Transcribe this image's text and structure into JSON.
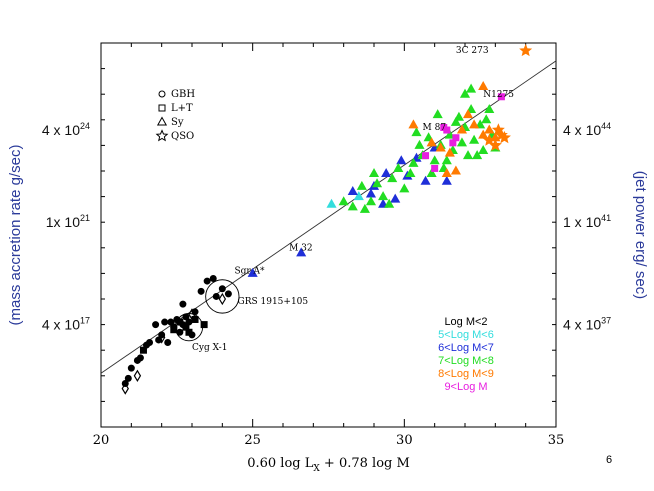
{
  "slide_number": "6",
  "colors": {
    "axis": "#000000",
    "blue_label": "#2a3a9a",
    "black_points": "#000000",
    "cyan": "#33dddd",
    "blue": "#1f2fd8",
    "green": "#22dd22",
    "orange": "#ff7a00",
    "magenta": "#e81fe0"
  },
  "chart_data": {
    "type": "scatter",
    "title": "",
    "xlabel_parts": {
      "prefix": "0.60  log  L",
      "sub": "X",
      "suffix": "  +  0.78  log  M"
    },
    "xlim": [
      20,
      35
    ],
    "x_ticks": [
      "20",
      "25",
      "30",
      "35"
    ],
    "ylim": [
      13,
      28
    ],
    "left_axis_label": "(mass accretion rate g/sec)",
    "right_axis_label": "(jet power erg/ sec)",
    "left_ticks": [
      {
        "value": 17,
        "mantissa": "4 x 10",
        "exp": "17"
      },
      {
        "value": 21,
        "mantissa": "1x 10",
        "exp": "21"
      },
      {
        "value": 24.6,
        "mantissa": "4 x 10",
        "exp": "24"
      }
    ],
    "right_ticks": [
      {
        "value": 17,
        "mantissa": "4 x 10",
        "exp": "37"
      },
      {
        "value": 21,
        "mantissa": "1 x 10",
        "exp": "41"
      },
      {
        "value": 24.6,
        "mantissa": "4 x 10",
        "exp": "44"
      }
    ],
    "fit_line": {
      "x": [
        20,
        35
      ],
      "y": [
        15.1,
        27.3
      ]
    },
    "symbol_legend": [
      {
        "symbol": "circle",
        "label": "GBH"
      },
      {
        "symbol": "square",
        "label": "L+T"
      },
      {
        "symbol": "triangle",
        "label": "Sy"
      },
      {
        "symbol": "star",
        "label": "QSO"
      }
    ],
    "mass_legend": [
      {
        "label": "Log M<2",
        "color_key": "axis"
      },
      {
        "label": "5<Log M<6",
        "color_key": "cyan"
      },
      {
        "label": "6<Log M<7",
        "color_key": "blue"
      },
      {
        "label": "7<Log M<8",
        "color_key": "green"
      },
      {
        "label": "8<Log M<9",
        "color_key": "orange"
      },
      {
        "label": "9<Log M",
        "color_key": "magenta"
      }
    ],
    "annotations": [
      {
        "text": "3C 273",
        "x": 31.7,
        "y": 27.6
      },
      {
        "text": "N1275",
        "x": 32.6,
        "y": 25.9
      },
      {
        "text": "M 87",
        "x": 30.6,
        "y": 24.6
      },
      {
        "text": "M 32",
        "x": 26.2,
        "y": 19.9
      },
      {
        "text": "Sgr A*",
        "x": 24.4,
        "y": 19.0
      },
      {
        "text": "GRS 1915+105",
        "x": 24.5,
        "y": 17.8
      },
      {
        "text": "Cyg X-1",
        "x": 23.0,
        "y": 16.0
      }
    ],
    "circled_points": [
      {
        "x": 24.0,
        "y": 18.1,
        "r": 0.55
      },
      {
        "x": 22.9,
        "y": 16.9,
        "r": 0.45
      }
    ],
    "series": [
      {
        "name": "GBH",
        "symbol": "circle",
        "color_key": "black_points",
        "points": [
          [
            20.8,
            14.7
          ],
          [
            20.9,
            14.9
          ],
          [
            21.2,
            15.6
          ],
          [
            21.3,
            15.7
          ],
          [
            21.0,
            15.3
          ],
          [
            21.5,
            16.2
          ],
          [
            21.6,
            16.3
          ],
          [
            21.9,
            16.4
          ],
          [
            22.0,
            16.6
          ],
          [
            21.8,
            17.0
          ],
          [
            22.1,
            17.1
          ],
          [
            22.3,
            17.1
          ],
          [
            22.5,
            17.2
          ],
          [
            22.7,
            17.0
          ],
          [
            22.8,
            17.3
          ],
          [
            22.4,
            16.9
          ],
          [
            22.6,
            16.7
          ],
          [
            22.9,
            17.1
          ],
          [
            23.1,
            17.5
          ],
          [
            23.3,
            18.3
          ],
          [
            23.5,
            18.7
          ],
          [
            23.7,
            18.8
          ],
          [
            23.8,
            18.1
          ],
          [
            24.0,
            18.4
          ],
          [
            22.7,
            17.8
          ],
          [
            23.0,
            16.6
          ],
          [
            22.2,
            16.3
          ],
          [
            24.2,
            18.2
          ]
        ]
      },
      {
        "name": "L+T",
        "symbol": "square",
        "color_key": "black_points",
        "points": [
          [
            22.6,
            17.1
          ],
          [
            22.8,
            16.9
          ],
          [
            23.1,
            17.2
          ],
          [
            22.4,
            16.8
          ],
          [
            21.4,
            16.0
          ],
          [
            22.9,
            16.7
          ],
          [
            23.4,
            17.0
          ]
        ]
      },
      {
        "name": "GBH limits",
        "symbol": "diamond",
        "color_key": "black_points",
        "points": [
          [
            20.8,
            14.5
          ],
          [
            21.2,
            15.0
          ],
          [
            23.0,
            17.4
          ],
          [
            24.0,
            18.0
          ],
          [
            22.0,
            16.5
          ]
        ]
      },
      {
        "name": "5<LogM<6",
        "symbol": "triangle",
        "color_key": "cyan",
        "points": [
          [
            27.6,
            21.7
          ],
          [
            28.5,
            22.0
          ]
        ]
      },
      {
        "name": "6<LogM<7",
        "symbol": "triangle",
        "color_key": "blue",
        "points": [
          [
            25.0,
            19.0
          ],
          [
            26.6,
            19.8
          ],
          [
            28.3,
            22.2
          ],
          [
            29.0,
            22.4
          ],
          [
            29.4,
            22.9
          ],
          [
            29.7,
            21.9
          ],
          [
            29.9,
            23.4
          ],
          [
            30.4,
            23.5
          ],
          [
            30.7,
            22.6
          ],
          [
            31.0,
            23.9
          ],
          [
            31.4,
            22.6
          ],
          [
            29.3,
            21.7
          ],
          [
            28.9,
            22.1
          ],
          [
            30.1,
            22.8
          ]
        ]
      },
      {
        "name": "7<LogM<8",
        "symbol": "triangle",
        "color_key": "green",
        "points": [
          [
            28.0,
            21.8
          ],
          [
            28.3,
            21.6
          ],
          [
            28.6,
            22.4
          ],
          [
            28.9,
            21.8
          ],
          [
            29.1,
            22.5
          ],
          [
            29.3,
            22.0
          ],
          [
            29.6,
            22.7
          ],
          [
            29.8,
            23.1
          ],
          [
            30.0,
            22.3
          ],
          [
            30.2,
            22.9
          ],
          [
            30.3,
            23.3
          ],
          [
            30.5,
            24.0
          ],
          [
            30.6,
            23.6
          ],
          [
            30.8,
            24.3
          ],
          [
            30.9,
            22.9
          ],
          [
            31.0,
            23.4
          ],
          [
            31.2,
            24.0
          ],
          [
            31.3,
            23.1
          ],
          [
            31.5,
            24.4
          ],
          [
            31.6,
            23.8
          ],
          [
            31.8,
            25.1
          ],
          [
            31.9,
            24.1
          ],
          [
            32.0,
            24.7
          ],
          [
            32.1,
            23.6
          ],
          [
            32.2,
            25.4
          ],
          [
            32.3,
            24.2
          ],
          [
            32.4,
            23.6
          ],
          [
            32.5,
            24.8
          ],
          [
            32.6,
            23.8
          ],
          [
            32.7,
            25.0
          ],
          [
            32.9,
            24.4
          ],
          [
            33.0,
            23.9
          ],
          [
            32.2,
            26.2
          ],
          [
            32.0,
            26.0
          ],
          [
            31.7,
            24.9
          ],
          [
            31.4,
            23.4
          ],
          [
            30.4,
            24.5
          ],
          [
            31.1,
            25.2
          ],
          [
            29.0,
            22.9
          ],
          [
            28.7,
            21.5
          ],
          [
            29.5,
            21.7
          ],
          [
            32.8,
            25.4
          ]
        ]
      },
      {
        "name": "8<LogM<9",
        "symbol": "triangle",
        "color_key": "orange",
        "points": [
          [
            30.9,
            24.1
          ],
          [
            31.2,
            23.9
          ],
          [
            31.5,
            23.7
          ],
          [
            31.7,
            23.0
          ],
          [
            31.9,
            24.6
          ],
          [
            32.3,
            24.8
          ],
          [
            32.6,
            24.4
          ],
          [
            32.8,
            24.6
          ],
          [
            33.0,
            24.3
          ],
          [
            32.6,
            26.3
          ],
          [
            32.1,
            25.2
          ],
          [
            31.4,
            22.9
          ],
          [
            30.3,
            24.8
          ]
        ]
      },
      {
        "name": "QSO",
        "symbol": "star",
        "color_key": "orange",
        "points": [
          [
            34.0,
            27.7
          ],
          [
            33.1,
            24.6
          ],
          [
            33.3,
            24.3
          ],
          [
            33.0,
            24.0
          ],
          [
            32.8,
            24.2
          ],
          [
            33.2,
            24.4
          ]
        ]
      },
      {
        "name": "9<LogM",
        "symbol": "square",
        "color_key": "magenta",
        "points": [
          [
            31.4,
            24.6
          ],
          [
            31.6,
            24.1
          ],
          [
            31.7,
            24.3
          ],
          [
            31.3,
            24.7
          ],
          [
            30.7,
            23.6
          ],
          [
            31.0,
            23.1
          ],
          [
            33.2,
            25.9
          ]
        ]
      }
    ]
  }
}
